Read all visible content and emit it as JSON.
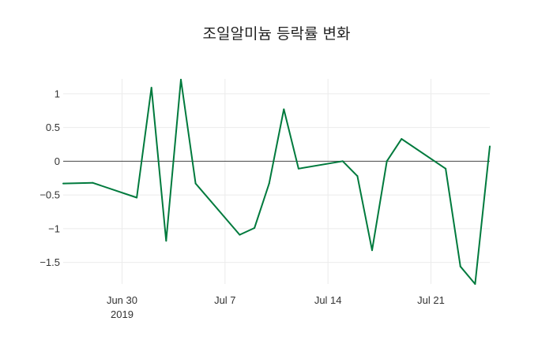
{
  "chart_data": {
    "type": "line",
    "title": "조일알미늄 등락률 변화",
    "xlabel": "",
    "ylabel": "",
    "x_ticks": [
      {
        "date": "2019-06-30",
        "label": "Jun 30",
        "sublabel": "2019"
      },
      {
        "date": "2019-07-07",
        "label": "Jul 7",
        "sublabel": ""
      },
      {
        "date": "2019-07-14",
        "label": "Jul 14",
        "sublabel": ""
      },
      {
        "date": "2019-07-21",
        "label": "Jul 21",
        "sublabel": ""
      }
    ],
    "y_ticks": [
      {
        "value": 1,
        "label": "1"
      },
      {
        "value": 0.5,
        "label": "0.5"
      },
      {
        "value": 0,
        "label": "0"
      },
      {
        "value": -0.5,
        "label": "−0.5"
      },
      {
        "value": -1,
        "label": "−1"
      },
      {
        "value": -1.5,
        "label": "−1.5"
      }
    ],
    "xlim": [
      "2019-06-26",
      "2019-07-25"
    ],
    "ylim": [
      -1.82,
      1.22
    ],
    "grid": true,
    "zero_line": true,
    "series": [
      {
        "color": "#007a3d",
        "x": [
          "2019-06-26",
          "2019-06-28",
          "2019-07-01",
          "2019-07-02",
          "2019-07-03",
          "2019-07-04",
          "2019-07-05",
          "2019-07-08",
          "2019-07-09",
          "2019-07-10",
          "2019-07-11",
          "2019-07-12",
          "2019-07-15",
          "2019-07-16",
          "2019-07-17",
          "2019-07-18",
          "2019-07-19",
          "2019-07-22",
          "2019-07-23",
          "2019-07-24",
          "2019-07-25"
        ],
        "y": [
          -0.33,
          -0.32,
          -0.54,
          1.09,
          -1.18,
          1.21,
          -0.33,
          -1.09,
          -0.99,
          -0.33,
          0.77,
          -0.11,
          0.0,
          -0.22,
          -1.32,
          0.0,
          0.33,
          -0.11,
          -1.56,
          -1.82,
          0.22
        ]
      }
    ]
  }
}
